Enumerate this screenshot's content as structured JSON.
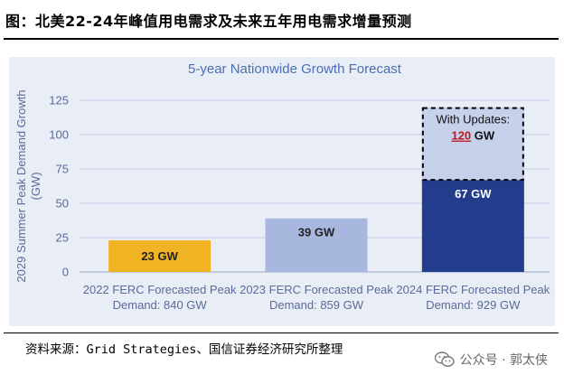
{
  "page_title": "图：北美22-24年峰值用电需求及未来五年用电需求增量预测",
  "source": "资料来源：Grid Strategies、国信证券经济研究所整理",
  "watermark": "公众号 · 郭太侠",
  "chart_data": {
    "type": "bar",
    "title": "5-year Nationwide Growth Forecast",
    "ylabel": "2029 Summer Peak Demand Growth (GW)",
    "ylabel_lines": [
      "2029 Summer Peak Demand Growth",
      "(GW)"
    ],
    "ylim": [
      0,
      125
    ],
    "yticks": [
      0,
      25,
      50,
      75,
      100,
      125
    ],
    "grid": true,
    "categories": [
      [
        "2022 FERC Forecasted Peak",
        "Demand: 840 GW"
      ],
      [
        "2023 FERC Forecasted Peak",
        "Demand: 859 GW"
      ],
      [
        "2024 FERC Forecasted Peak",
        "Demand: 929 GW"
      ]
    ],
    "values": [
      23,
      39,
      67
    ],
    "bar_labels": [
      "23 GW",
      "39 GW",
      "67 GW"
    ],
    "colors": [
      "#f0b323",
      "#a8b7de",
      "#233d8c"
    ],
    "update": {
      "value": 120,
      "label_line1": "With Updates:",
      "label_value": "120",
      "label_unit": " GW",
      "fill": "#c6d1ec",
      "value_color": "#c0171e"
    },
    "colors_misc": {
      "title": "#4a6fb5",
      "axis_text": "#5b6b9a",
      "grid": "#c3cbe0"
    }
  }
}
